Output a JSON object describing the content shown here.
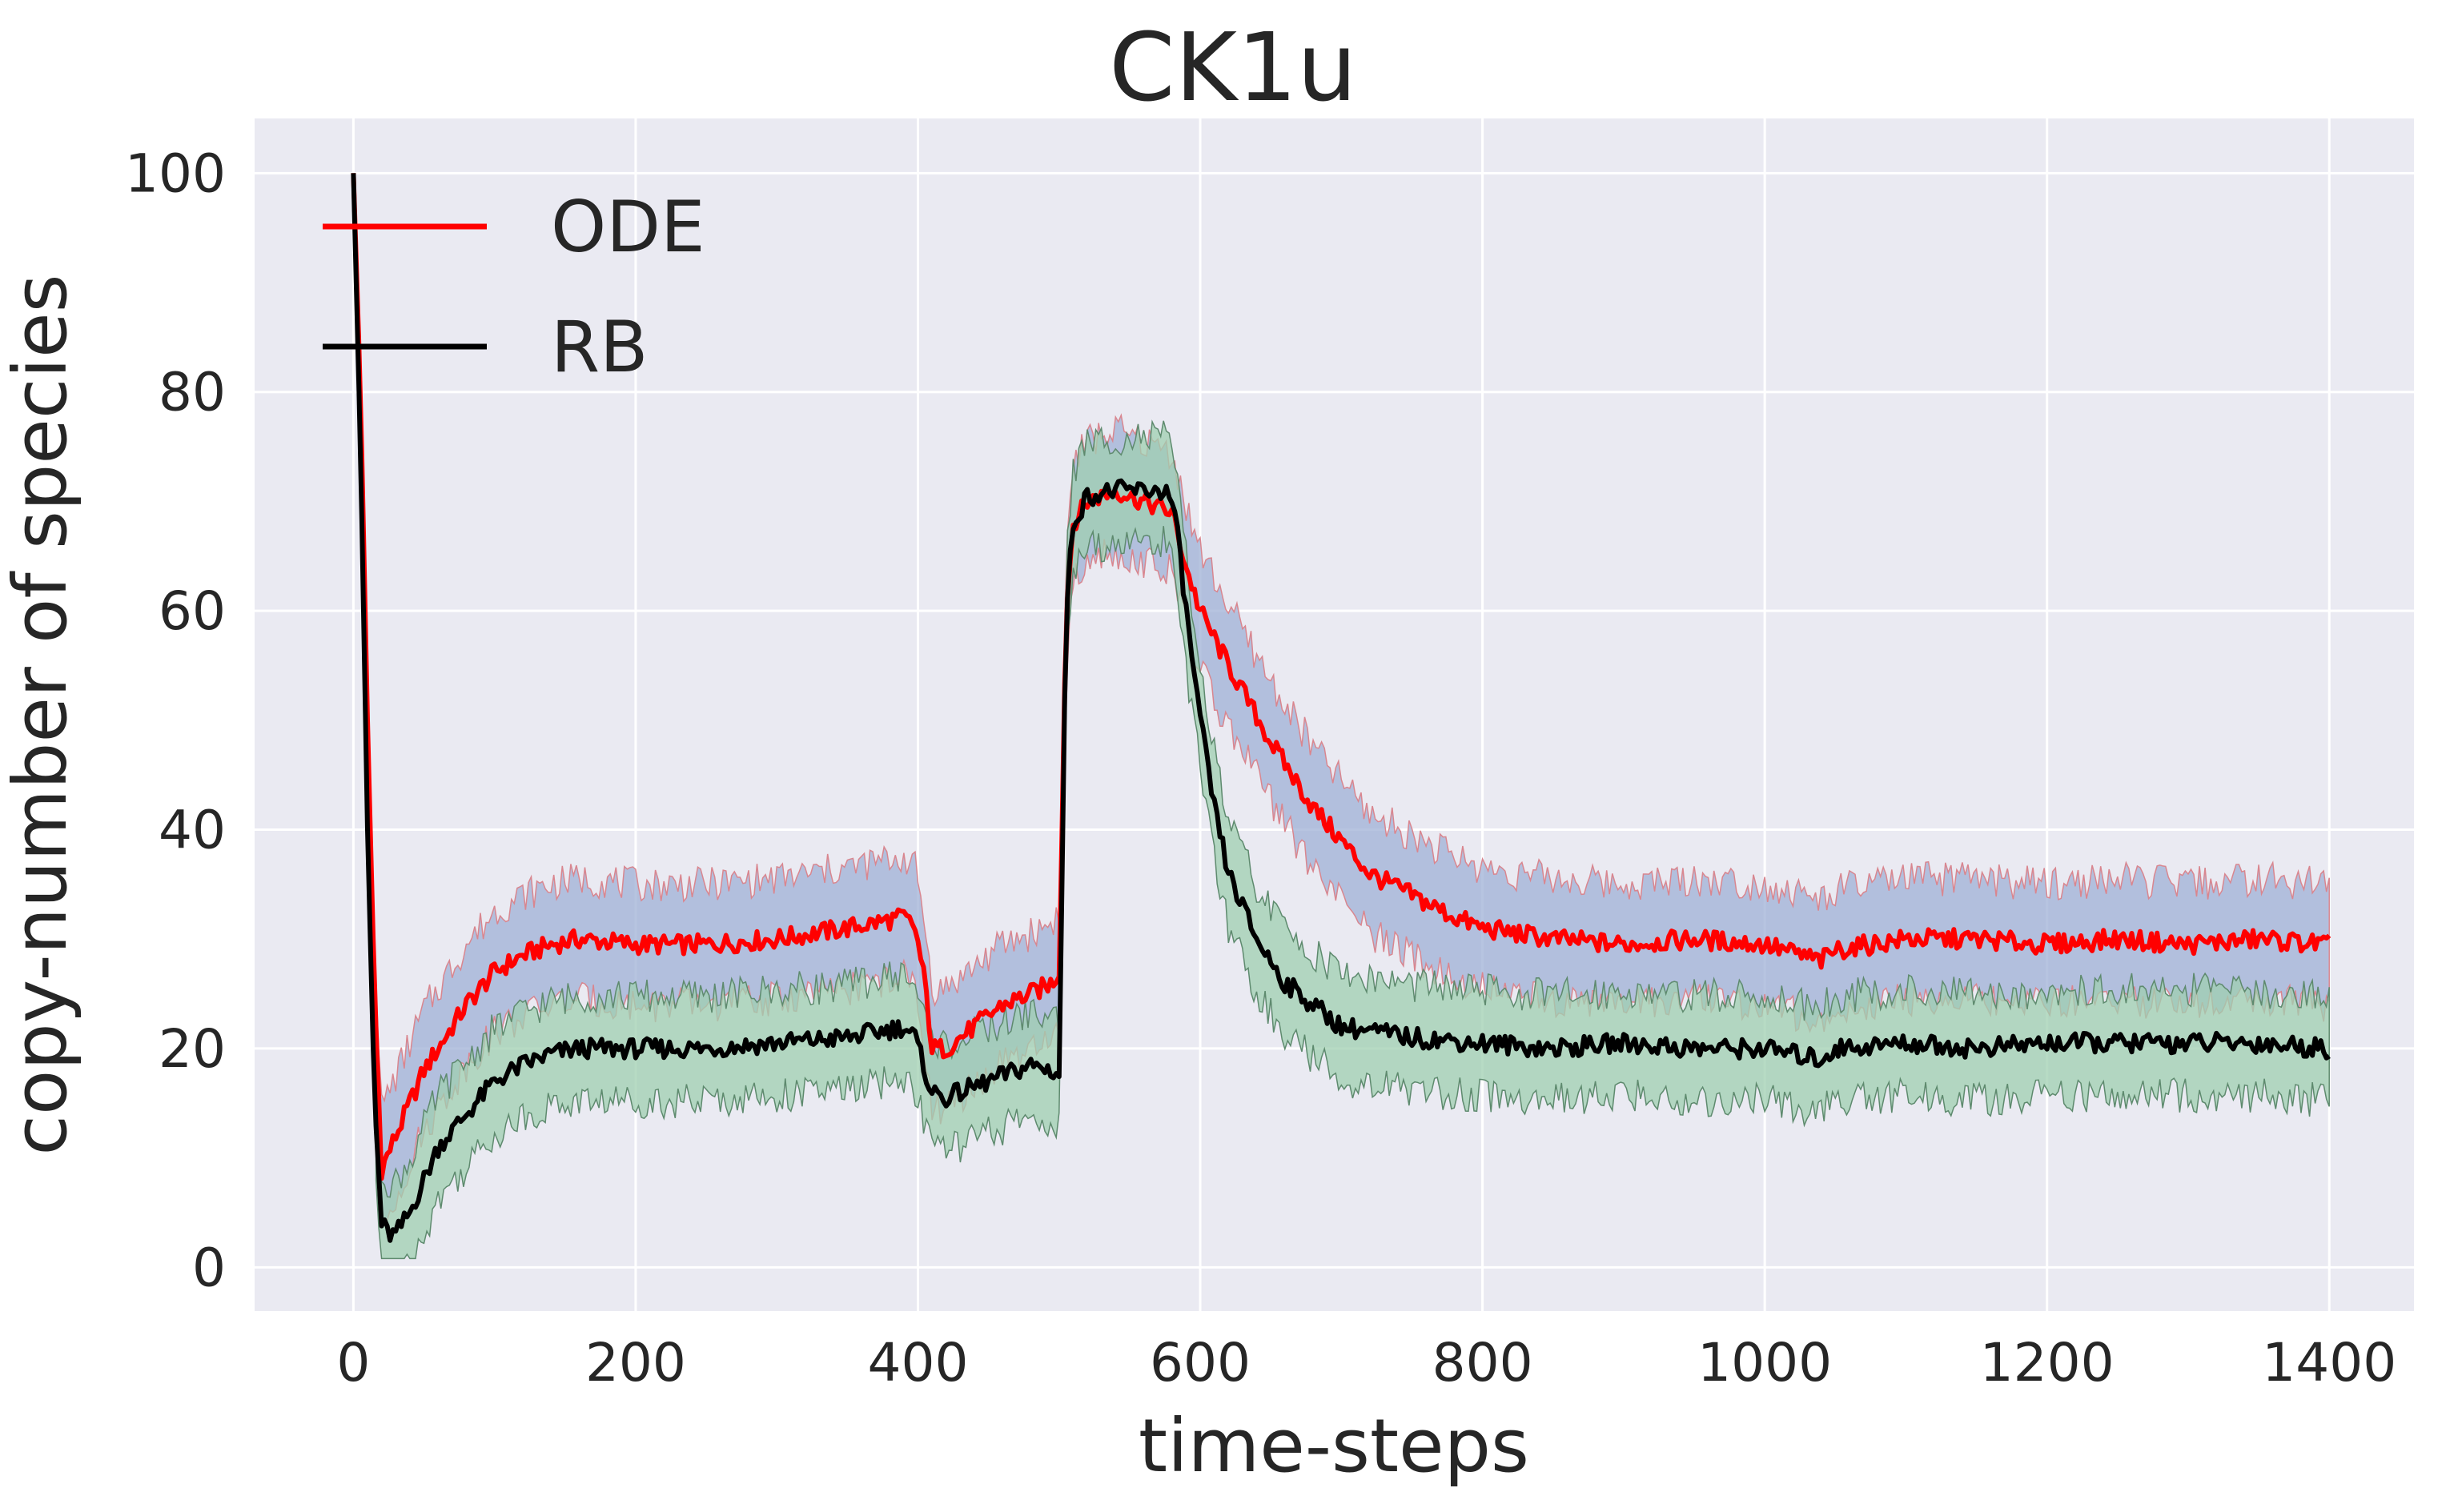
{
  "chart_data": {
    "type": "line",
    "title": "CK1u",
    "xlabel": "time-steps",
    "ylabel": "copy-number of species",
    "xlim": [
      -70,
      1460
    ],
    "ylim": [
      -4,
      105
    ],
    "x_ticks": [
      0,
      200,
      400,
      600,
      800,
      1000,
      1200,
      1400
    ],
    "y_ticks": [
      0,
      20,
      40,
      60,
      80,
      100
    ],
    "grid": true,
    "legend_position": "top-left",
    "background_color": "#eaeaf2",
    "series": [
      {
        "name": "ODE",
        "color": "#ff0000",
        "band_color": "#9fb0d6",
        "band_edge_color": "#d9868f",
        "band_halfwidth": 5.5,
        "x": [
          0,
          5,
          10,
          15,
          20,
          30,
          40,
          50,
          60,
          80,
          100,
          120,
          140,
          160,
          200,
          250,
          300,
          350,
          390,
          398,
          405,
          410,
          420,
          440,
          460,
          480,
          495,
          500,
          505,
          510,
          520,
          540,
          560,
          580,
          590,
          600,
          620,
          650,
          680,
          700,
          720,
          750,
          780,
          800,
          850,
          900,
          950,
          1000,
          1040,
          1050,
          1100,
          1150,
          1200,
          1250,
          1300,
          1350,
          1400
        ],
        "y": [
          100,
          80,
          50,
          25,
          9,
          12,
          15,
          18,
          20,
          24,
          27,
          28.5,
          29.5,
          30,
          29.5,
          29.5,
          30,
          31,
          32,
          31,
          26,
          20,
          20,
          22,
          24,
          25,
          26,
          27,
          60,
          68,
          70,
          71,
          70,
          69,
          64,
          60,
          55,
          48,
          42,
          39,
          36,
          34,
          32,
          31,
          30,
          29.5,
          30,
          29.5,
          28,
          29,
          30,
          30,
          29.5,
          30,
          29.5,
          30,
          29.5
        ]
      },
      {
        "name": "RB",
        "color": "#000000",
        "band_color": "#9fcfb0",
        "band_edge_color": "#5e8a6e",
        "band_halfwidth": 4.8,
        "x": [
          0,
          5,
          10,
          15,
          20,
          25,
          30,
          40,
          50,
          60,
          80,
          100,
          120,
          140,
          160,
          200,
          250,
          300,
          350,
          390,
          398,
          405,
          410,
          420,
          440,
          460,
          480,
          495,
          500,
          505,
          510,
          520,
          540,
          560,
          575,
          580,
          585,
          590,
          600,
          610,
          620,
          640,
          660,
          680,
          700,
          750,
          800,
          850,
          900,
          950,
          1000,
          1040,
          1050,
          1100,
          1150,
          1200,
          1250,
          1300,
          1350,
          1400
        ],
        "y": [
          100,
          75,
          40,
          15,
          4,
          3,
          3,
          5,
          8,
          11,
          14,
          17,
          18.5,
          19.5,
          20,
          20,
          20,
          20.5,
          21,
          22,
          21,
          18,
          16,
          15.5,
          16.5,
          17.5,
          18.5,
          18,
          17.5,
          60,
          68,
          70.5,
          71,
          71,
          71,
          70,
          66,
          60,
          50,
          42,
          36,
          30,
          26,
          24,
          22,
          21,
          20.5,
          20,
          20.5,
          20,
          20,
          19,
          20,
          20.5,
          20,
          20.5,
          20.5,
          20.5,
          20.5,
          20
        ]
      }
    ]
  }
}
